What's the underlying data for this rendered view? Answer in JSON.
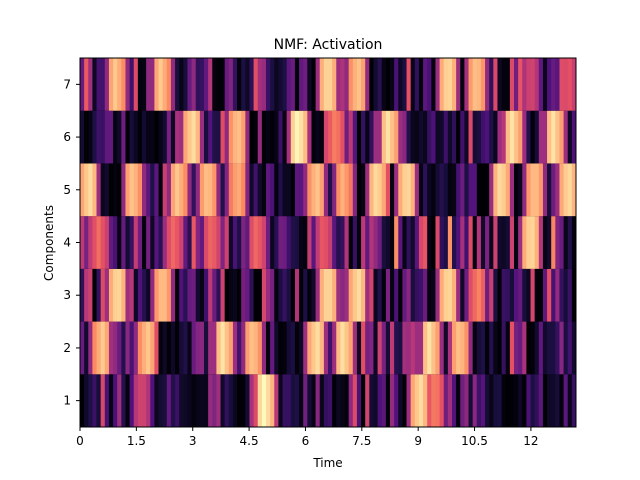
{
  "chart_data": {
    "type": "heatmap",
    "title": "NMF: Activation",
    "xlabel": "Time",
    "ylabel": "Components",
    "xlim": [
      0,
      13.2
    ],
    "ylim": [
      0.5,
      7.5
    ],
    "xticks": [
      0,
      1.5,
      3,
      4.5,
      6,
      7.5,
      9,
      10.5,
      12
    ],
    "xtick_labels": [
      "0",
      "1.5",
      "3",
      "4.5",
      "6",
      "7.5",
      "9",
      "10.5",
      "12"
    ],
    "yticks": [
      1,
      2,
      3,
      4,
      5,
      6,
      7
    ],
    "ytick_labels": [
      "1",
      "2",
      "3",
      "4",
      "5",
      "6",
      "7"
    ],
    "colormap": "magma",
    "columns": 120,
    "rows": [
      {
        "component": 1,
        "peaks": [
          [
            1.65,
            0.45
          ],
          [
            4.9,
            0.85
          ],
          [
            9.05,
            0.8
          ],
          [
            9.45,
            0.6
          ]
        ],
        "base": 0.3
      },
      {
        "component": 2,
        "peaks": [
          [
            0.6,
            0.75
          ],
          [
            1.8,
            0.75
          ],
          [
            3.8,
            0.8
          ],
          [
            4.6,
            0.75
          ],
          [
            6.3,
            0.8
          ],
          [
            7.0,
            0.8
          ],
          [
            9.3,
            0.8
          ],
          [
            10.1,
            0.75
          ]
        ],
        "base": 0.3
      },
      {
        "component": 3,
        "peaks": [
          [
            1.0,
            0.8
          ],
          [
            2.2,
            0.75
          ],
          [
            6.6,
            0.8
          ],
          [
            7.4,
            0.8
          ],
          [
            9.8,
            0.8
          ],
          [
            10.6,
            0.6
          ]
        ],
        "base": 0.28
      },
      {
        "component": 4,
        "peaks": [
          [
            0.5,
            0.55
          ],
          [
            2.5,
            0.55
          ],
          [
            3.5,
            0.55
          ],
          [
            4.7,
            0.55
          ],
          [
            6.5,
            0.5
          ],
          [
            12.0,
            0.8
          ]
        ],
        "base": 0.45
      },
      {
        "component": 5,
        "peaks": [
          [
            0.25,
            0.8
          ],
          [
            1.4,
            0.75
          ],
          [
            2.6,
            0.75
          ],
          [
            3.4,
            0.75
          ],
          [
            4.2,
            0.7
          ],
          [
            6.3,
            0.75
          ],
          [
            7.0,
            0.7
          ],
          [
            7.9,
            0.8
          ],
          [
            8.7,
            0.8
          ],
          [
            11.2,
            0.8
          ],
          [
            12.1,
            0.75
          ],
          [
            13.0,
            0.8
          ]
        ],
        "base": 0.25
      },
      {
        "component": 6,
        "peaks": [
          [
            3.0,
            0.8
          ],
          [
            4.2,
            0.75
          ],
          [
            5.8,
            0.85
          ],
          [
            6.8,
            0.6
          ],
          [
            8.2,
            0.8
          ],
          [
            11.5,
            0.8
          ],
          [
            12.6,
            0.8
          ]
        ],
        "base": 0.3
      },
      {
        "component": 7,
        "peaks": [
          [
            0.95,
            0.75
          ],
          [
            2.15,
            0.75
          ],
          [
            6.6,
            0.8
          ],
          [
            7.4,
            0.75
          ],
          [
            9.8,
            0.8
          ],
          [
            10.55,
            0.75
          ],
          [
            12.0,
            0.45
          ],
          [
            13.0,
            0.5
          ]
        ],
        "base": 0.35
      }
    ]
  }
}
